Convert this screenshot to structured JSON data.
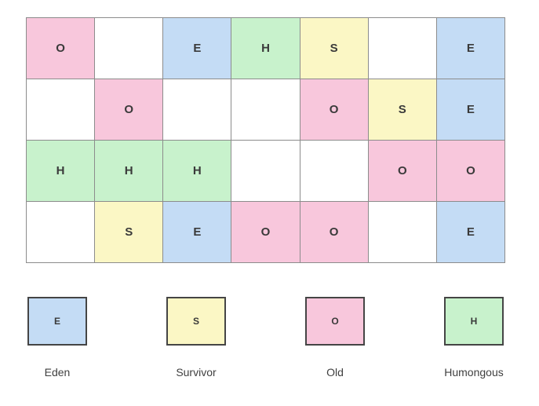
{
  "colors": {
    "grid_border": "#8c8c8c",
    "letter": "#3a3a3a",
    "legend_border": "#454545",
    "eden": "#c4dcf5",
    "survivor": "#fbf7c5",
    "old": "#f8c7dc",
    "humongous": "#c8f2cc",
    "empty": "#ffffff"
  },
  "types": {
    "E": {
      "name": "eden",
      "color": "#c4dcf5"
    },
    "S": {
      "name": "survivor",
      "color": "#fbf7c5"
    },
    "O": {
      "name": "old",
      "color": "#f8c7dc"
    },
    "H": {
      "name": "humongous",
      "color": "#c8f2cc"
    }
  },
  "grid": {
    "rows": [
      [
        "O",
        "",
        "E",
        "H",
        "S",
        "",
        "E"
      ],
      [
        "",
        "O",
        "",
        "",
        "O",
        "S",
        "E"
      ],
      [
        "H",
        "H",
        "H",
        "",
        "",
        "O",
        "O"
      ],
      [
        "",
        "S",
        "E",
        "O",
        "O",
        "",
        "E"
      ]
    ]
  },
  "legend": {
    "items": [
      {
        "letter": "E",
        "label": "Eden"
      },
      {
        "letter": "S",
        "label": "Survivor"
      },
      {
        "letter": "O",
        "label": "Old"
      },
      {
        "letter": "H",
        "label": "Humongous"
      }
    ]
  }
}
